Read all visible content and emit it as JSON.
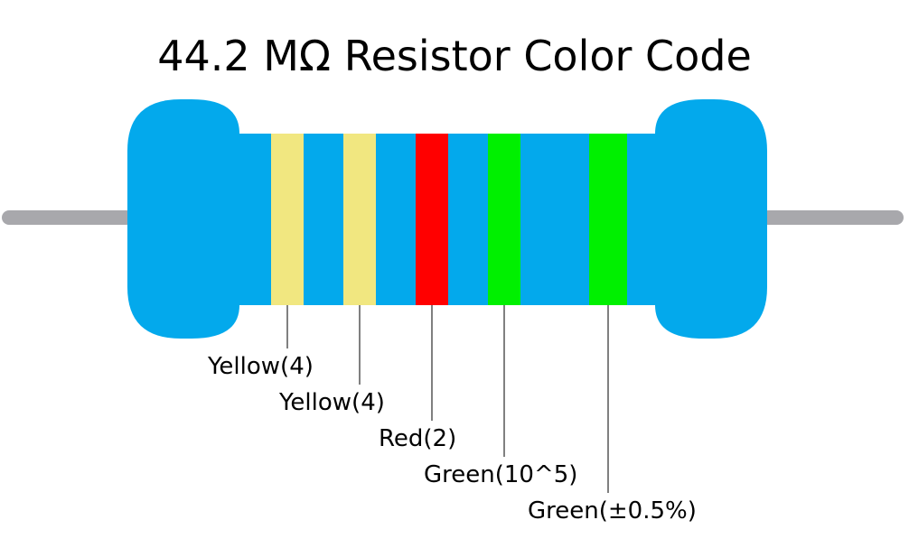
{
  "title": "44.2 MΩ Resistor Color Code",
  "colors": {
    "body": "#03A9EC",
    "lead": "#A8A8AC",
    "leader_line": "#000000"
  },
  "bands": [
    {
      "name": "Yellow",
      "color": "#F1E780",
      "label": "Yellow(4)"
    },
    {
      "name": "Yellow",
      "color": "#F1E780",
      "label": "Yellow(4)"
    },
    {
      "name": "Red",
      "color": "#FF0000",
      "label": "Red(2)"
    },
    {
      "name": "Green",
      "color": "#00F000",
      "label": "Green(10^5)"
    },
    {
      "name": "Green",
      "color": "#00F000",
      "label": "Green(±0.5%)"
    }
  ]
}
